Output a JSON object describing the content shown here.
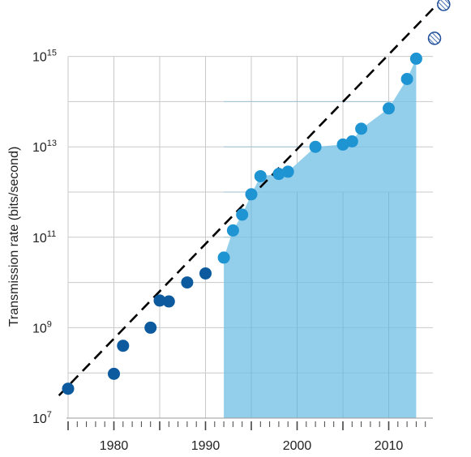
{
  "chart_data": {
    "type": "scatter",
    "title": "",
    "xlabel": "",
    "ylabel": "Transmission rate (bits/second)",
    "y_scale": "log10",
    "x_range": [
      1974,
      2015
    ],
    "y_range_log10": [
      7,
      15.8
    ],
    "x_ticks": [
      1980,
      1990,
      2000,
      2010
    ],
    "y_ticks": [
      {
        "base": "10",
        "exp": "7",
        "log10": 7
      },
      {
        "base": "10",
        "exp": "9",
        "log10": 9
      },
      {
        "base": "10",
        "exp": "11",
        "log10": 11
      },
      {
        "base": "10",
        "exp": "13",
        "log10": 13
      },
      {
        "base": "10",
        "exp": "15",
        "log10": 15
      }
    ],
    "grid": "horizontal and vertical",
    "colors": {
      "early_points": "#0d5a9e",
      "recent_points": "#1e94d3",
      "area_fill": "#93cfea",
      "trend_line": "#000000",
      "projected_hatch": "#1f4e9a",
      "grid": "#c9c9c9"
    },
    "trend_line": {
      "style": "dashed",
      "points": [
        [
          1974,
          7.5
        ],
        [
          2016,
          16.3
        ]
      ]
    },
    "area": {
      "x_start": 1992,
      "x_end": 2013
    },
    "series": [
      {
        "style": "early",
        "points": [
          {
            "x": 1975,
            "y_log10": 7.65
          },
          {
            "x": 1980,
            "y_log10": 7.98
          },
          {
            "x": 1981,
            "y_log10": 8.6
          },
          {
            "x": 1984,
            "y_log10": 9.0
          },
          {
            "x": 1985,
            "y_log10": 9.6
          },
          {
            "x": 1986,
            "y_log10": 9.58
          },
          {
            "x": 1988,
            "y_log10": 10.0
          },
          {
            "x": 1990,
            "y_log10": 10.2
          }
        ]
      },
      {
        "style": "recent",
        "points": [
          {
            "x": 1992,
            "y_log10": 10.55
          },
          {
            "x": 1993,
            "y_log10": 11.15
          },
          {
            "x": 1994,
            "y_log10": 11.5
          },
          {
            "x": 1995,
            "y_log10": 11.95
          },
          {
            "x": 1996,
            "y_log10": 12.35
          },
          {
            "x": 1998,
            "y_log10": 12.4
          },
          {
            "x": 1999,
            "y_log10": 12.45
          },
          {
            "x": 2002,
            "y_log10": 13.0
          },
          {
            "x": 2005,
            "y_log10": 13.05
          },
          {
            "x": 2006,
            "y_log10": 13.12
          },
          {
            "x": 2007,
            "y_log10": 13.4
          },
          {
            "x": 2010,
            "y_log10": 13.85
          },
          {
            "x": 2012,
            "y_log10": 14.5
          },
          {
            "x": 2013,
            "y_log10": 14.95
          }
        ]
      },
      {
        "style": "projected",
        "points": [
          {
            "x": 2015,
            "y_log10": 15.4
          },
          {
            "x": 2016,
            "y_log10": 16.15
          }
        ]
      }
    ]
  }
}
